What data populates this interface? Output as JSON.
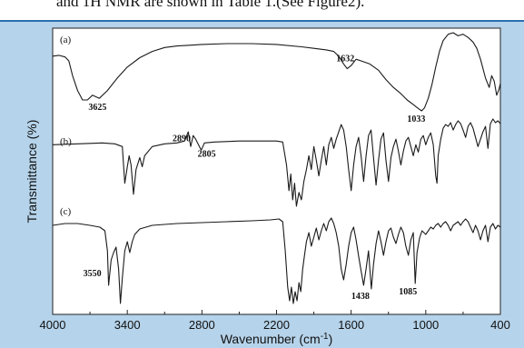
{
  "header_text": "and 1H NMR are shown in Table 1.(See Figure2).",
  "chart_data": {
    "type": "line",
    "xlabel": "Wavenumber (cm-1)",
    "ylabel": "Transmittance (%)",
    "x_ticks": [
      4000,
      3400,
      2800,
      2200,
      1600,
      1000,
      400
    ],
    "xlim": [
      4000,
      400
    ],
    "x_reversed": true,
    "grid": false,
    "series": [
      {
        "name": "(a)",
        "points": [
          [
            4000,
            0.3
          ],
          [
            3950,
            0.29
          ],
          [
            3900,
            0.31
          ],
          [
            3870,
            0.36
          ],
          [
            3840,
            0.55
          ],
          [
            3800,
            0.74
          ],
          [
            3760,
            0.86
          ],
          [
            3720,
            0.86
          ],
          [
            3680,
            0.8
          ],
          [
            3625,
            0.84
          ],
          [
            3560,
            0.74
          ],
          [
            3480,
            0.58
          ],
          [
            3400,
            0.44
          ],
          [
            3300,
            0.32
          ],
          [
            3200,
            0.24
          ],
          [
            3100,
            0.19
          ],
          [
            3000,
            0.17
          ],
          [
            2900,
            0.16
          ],
          [
            2800,
            0.15
          ],
          [
            2600,
            0.14
          ],
          [
            2400,
            0.14
          ],
          [
            2200,
            0.15
          ],
          [
            2000,
            0.18
          ],
          [
            1900,
            0.2
          ],
          [
            1800,
            0.22
          ],
          [
            1740,
            0.24
          ],
          [
            1700,
            0.3
          ],
          [
            1660,
            0.4
          ],
          [
            1632,
            0.46
          ],
          [
            1600,
            0.42
          ],
          [
            1560,
            0.34
          ],
          [
            1520,
            0.36
          ],
          [
            1450,
            0.4
          ],
          [
            1380,
            0.48
          ],
          [
            1320,
            0.6
          ],
          [
            1260,
            0.7
          ],
          [
            1200,
            0.78
          ],
          [
            1150,
            0.86
          ],
          [
            1100,
            0.92
          ],
          [
            1060,
            0.97
          ],
          [
            1033,
            1.0
          ],
          [
            1010,
            0.96
          ],
          [
            980,
            0.84
          ],
          [
            950,
            0.66
          ],
          [
            920,
            0.44
          ],
          [
            890,
            0.24
          ],
          [
            860,
            0.1
          ],
          [
            820,
            0.02
          ],
          [
            780,
            0.0
          ],
          [
            740,
            0.04
          ],
          [
            700,
            0.02
          ],
          [
            660,
            0.06
          ],
          [
            620,
            0.12
          ],
          [
            590,
            0.2
          ],
          [
            560,
            0.34
          ],
          [
            520,
            0.58
          ],
          [
            490,
            0.7
          ],
          [
            470,
            0.55
          ],
          [
            450,
            0.62
          ],
          [
            430,
            0.8
          ],
          [
            410,
            0.72
          ],
          [
            400,
            0.65
          ]
        ],
        "labels": [
          {
            "text": "3625",
            "x": 3625
          },
          {
            "text": "1632",
            "x": 1632
          },
          {
            "text": "1033",
            "x": 1033
          }
        ]
      },
      {
        "name": "(b)",
        "points": [
          [
            4000,
            0.28
          ],
          [
            3800,
            0.27
          ],
          [
            3600,
            0.26
          ],
          [
            3500,
            0.27
          ],
          [
            3440,
            0.3
          ],
          [
            3420,
            0.7
          ],
          [
            3400,
            0.52
          ],
          [
            3385,
            0.4
          ],
          [
            3370,
            0.5
          ],
          [
            3350,
            0.82
          ],
          [
            3330,
            0.55
          ],
          [
            3300,
            0.42
          ],
          [
            3280,
            0.52
          ],
          [
            3260,
            0.4
          ],
          [
            3200,
            0.3
          ],
          [
            3100,
            0.27
          ],
          [
            3000,
            0.26
          ],
          [
            2940,
            0.24
          ],
          [
            2910,
            0.14
          ],
          [
            2890,
            0.3
          ],
          [
            2870,
            0.18
          ],
          [
            2850,
            0.22
          ],
          [
            2805,
            0.34
          ],
          [
            2780,
            0.26
          ],
          [
            2700,
            0.25
          ],
          [
            2500,
            0.24
          ],
          [
            2300,
            0.24
          ],
          [
            2200,
            0.24
          ],
          [
            2150,
            0.25
          ],
          [
            2120,
            0.5
          ],
          [
            2100,
            0.78
          ],
          [
            2085,
            0.6
          ],
          [
            2070,
            0.88
          ],
          [
            2055,
            0.7
          ],
          [
            2040,
            0.95
          ],
          [
            2020,
            0.8
          ],
          [
            2000,
            0.88
          ],
          [
            1980,
            0.68
          ],
          [
            1960,
            0.55
          ],
          [
            1940,
            0.4
          ],
          [
            1920,
            0.55
          ],
          [
            1900,
            0.3
          ],
          [
            1880,
            0.45
          ],
          [
            1860,
            0.62
          ],
          [
            1840,
            0.45
          ],
          [
            1820,
            0.3
          ],
          [
            1800,
            0.5
          ],
          [
            1780,
            0.28
          ],
          [
            1760,
            0.2
          ],
          [
            1740,
            0.32
          ],
          [
            1720,
            0.22
          ],
          [
            1700,
            0.14
          ],
          [
            1680,
            0.06
          ],
          [
            1660,
            0.12
          ],
          [
            1640,
            0.3
          ],
          [
            1620,
            0.55
          ],
          [
            1600,
            0.78
          ],
          [
            1580,
            0.5
          ],
          [
            1560,
            0.3
          ],
          [
            1540,
            0.2
          ],
          [
            1520,
            0.4
          ],
          [
            1500,
            0.68
          ],
          [
            1480,
            0.4
          ],
          [
            1460,
            0.18
          ],
          [
            1440,
            0.12
          ],
          [
            1420,
            0.42
          ],
          [
            1400,
            0.72
          ],
          [
            1380,
            0.45
          ],
          [
            1360,
            0.22
          ],
          [
            1340,
            0.15
          ],
          [
            1320,
            0.45
          ],
          [
            1300,
            0.68
          ],
          [
            1280,
            0.42
          ],
          [
            1260,
            0.3
          ],
          [
            1240,
            0.22
          ],
          [
            1220,
            0.35
          ],
          [
            1200,
            0.5
          ],
          [
            1180,
            0.35
          ],
          [
            1160,
            0.24
          ],
          [
            1140,
            0.2
          ],
          [
            1120,
            0.3
          ],
          [
            1100,
            0.4
          ],
          [
            1080,
            0.28
          ],
          [
            1060,
            0.36
          ],
          [
            1040,
            0.22
          ],
          [
            1020,
            0.18
          ],
          [
            1000,
            0.28
          ],
          [
            980,
            0.2
          ],
          [
            960,
            0.15
          ],
          [
            940,
            0.28
          ],
          [
            920,
            0.62
          ],
          [
            910,
            0.7
          ],
          [
            900,
            0.4
          ],
          [
            880,
            0.22
          ],
          [
            860,
            0.1
          ],
          [
            840,
            0.06
          ],
          [
            820,
            0.08
          ],
          [
            800,
            0.04
          ],
          [
            780,
            0.12
          ],
          [
            760,
            0.06
          ],
          [
            740,
            0.02
          ],
          [
            720,
            0.05
          ],
          [
            700,
            0.12
          ],
          [
            680,
            0.2
          ],
          [
            660,
            0.08
          ],
          [
            640,
            0.04
          ],
          [
            620,
            0.1
          ],
          [
            600,
            0.2
          ],
          [
            580,
            0.3
          ],
          [
            560,
            0.22
          ],
          [
            540,
            0.14
          ],
          [
            520,
            0.08
          ],
          [
            500,
            0.32
          ],
          [
            480,
            0.05
          ],
          [
            460,
            0.0
          ],
          [
            440,
            0.04
          ],
          [
            420,
            0.02
          ],
          [
            400,
            0.05
          ]
        ],
        "labels": [
          {
            "text": "2890",
            "x": 2890
          },
          {
            "text": "2805",
            "x": 2805
          }
        ]
      },
      {
        "name": "(c)",
        "points": [
          [
            4000,
            0.12
          ],
          [
            3900,
            0.1
          ],
          [
            3800,
            0.1
          ],
          [
            3700,
            0.12
          ],
          [
            3620,
            0.14
          ],
          [
            3580,
            0.18
          ],
          [
            3560,
            0.4
          ],
          [
            3550,
            0.78
          ],
          [
            3530,
            0.5
          ],
          [
            3510,
            0.42
          ],
          [
            3490,
            0.36
          ],
          [
            3470,
            0.6
          ],
          [
            3455,
            0.98
          ],
          [
            3440,
            0.7
          ],
          [
            3420,
            0.4
          ],
          [
            3400,
            0.3
          ],
          [
            3380,
            0.42
          ],
          [
            3360,
            0.3
          ],
          [
            3340,
            0.22
          ],
          [
            3300,
            0.16
          ],
          [
            3200,
            0.12
          ],
          [
            3000,
            0.1
          ],
          [
            2800,
            0.09
          ],
          [
            2600,
            0.08
          ],
          [
            2400,
            0.07
          ],
          [
            2250,
            0.06
          ],
          [
            2180,
            0.05
          ],
          [
            2150,
            0.08
          ],
          [
            2130,
            0.4
          ],
          [
            2110,
            0.8
          ],
          [
            2095,
            0.95
          ],
          [
            2080,
            0.8
          ],
          [
            2065,
            0.98
          ],
          [
            2050,
            0.85
          ],
          [
            2035,
            0.95
          ],
          [
            2020,
            0.75
          ],
          [
            2005,
            0.85
          ],
          [
            1990,
            0.6
          ],
          [
            1975,
            0.45
          ],
          [
            1960,
            0.3
          ],
          [
            1940,
            0.2
          ],
          [
            1920,
            0.35
          ],
          [
            1900,
            0.25
          ],
          [
            1880,
            0.15
          ],
          [
            1860,
            0.28
          ],
          [
            1840,
            0.18
          ],
          [
            1820,
            0.1
          ],
          [
            1800,
            0.18
          ],
          [
            1780,
            0.08
          ],
          [
            1760,
            0.04
          ],
          [
            1740,
            0.1
          ],
          [
            1720,
            0.2
          ],
          [
            1700,
            0.35
          ],
          [
            1680,
            0.6
          ],
          [
            1660,
            0.72
          ],
          [
            1640,
            0.55
          ],
          [
            1620,
            0.35
          ],
          [
            1600,
            0.2
          ],
          [
            1580,
            0.14
          ],
          [
            1560,
            0.28
          ],
          [
            1540,
            0.46
          ],
          [
            1520,
            0.62
          ],
          [
            1500,
            0.78
          ],
          [
            1480,
            0.6
          ],
          [
            1460,
            0.4
          ],
          [
            1438,
            0.82
          ],
          [
            1420,
            0.55
          ],
          [
            1400,
            0.32
          ],
          [
            1380,
            0.18
          ],
          [
            1360,
            0.3
          ],
          [
            1340,
            0.45
          ],
          [
            1320,
            0.3
          ],
          [
            1300,
            0.18
          ],
          [
            1280,
            0.15
          ],
          [
            1260,
            0.25
          ],
          [
            1240,
            0.32
          ],
          [
            1220,
            0.22
          ],
          [
            1200,
            0.14
          ],
          [
            1180,
            0.2
          ],
          [
            1160,
            0.35
          ],
          [
            1140,
            0.45
          ],
          [
            1120,
            0.28
          ],
          [
            1100,
            0.2
          ],
          [
            1085,
            0.76
          ],
          [
            1070,
            0.42
          ],
          [
            1050,
            0.26
          ],
          [
            1030,
            0.18
          ],
          [
            1000,
            0.22
          ],
          [
            980,
            0.18
          ],
          [
            960,
            0.14
          ],
          [
            940,
            0.16
          ],
          [
            920,
            0.12
          ],
          [
            900,
            0.1
          ],
          [
            880,
            0.14
          ],
          [
            860,
            0.1
          ],
          [
            840,
            0.08
          ],
          [
            820,
            0.12
          ],
          [
            800,
            0.18
          ],
          [
            780,
            0.12
          ],
          [
            760,
            0.1
          ],
          [
            740,
            0.08
          ],
          [
            720,
            0.12
          ],
          [
            700,
            0.08
          ],
          [
            680,
            0.05
          ],
          [
            660,
            0.08
          ],
          [
            640,
            0.14
          ],
          [
            620,
            0.2
          ],
          [
            600,
            0.12
          ],
          [
            580,
            0.18
          ],
          [
            560,
            0.28
          ],
          [
            540,
            0.18
          ],
          [
            520,
            0.12
          ],
          [
            500,
            0.3
          ],
          [
            480,
            0.14
          ],
          [
            460,
            0.1
          ],
          [
            440,
            0.16
          ],
          [
            420,
            0.12
          ],
          [
            400,
            0.14
          ]
        ],
        "labels": [
          {
            "text": "3550",
            "x": 3550
          },
          {
            "text": "1438",
            "x": 1438
          },
          {
            "text": "1085",
            "x": 1085
          }
        ]
      }
    ]
  }
}
